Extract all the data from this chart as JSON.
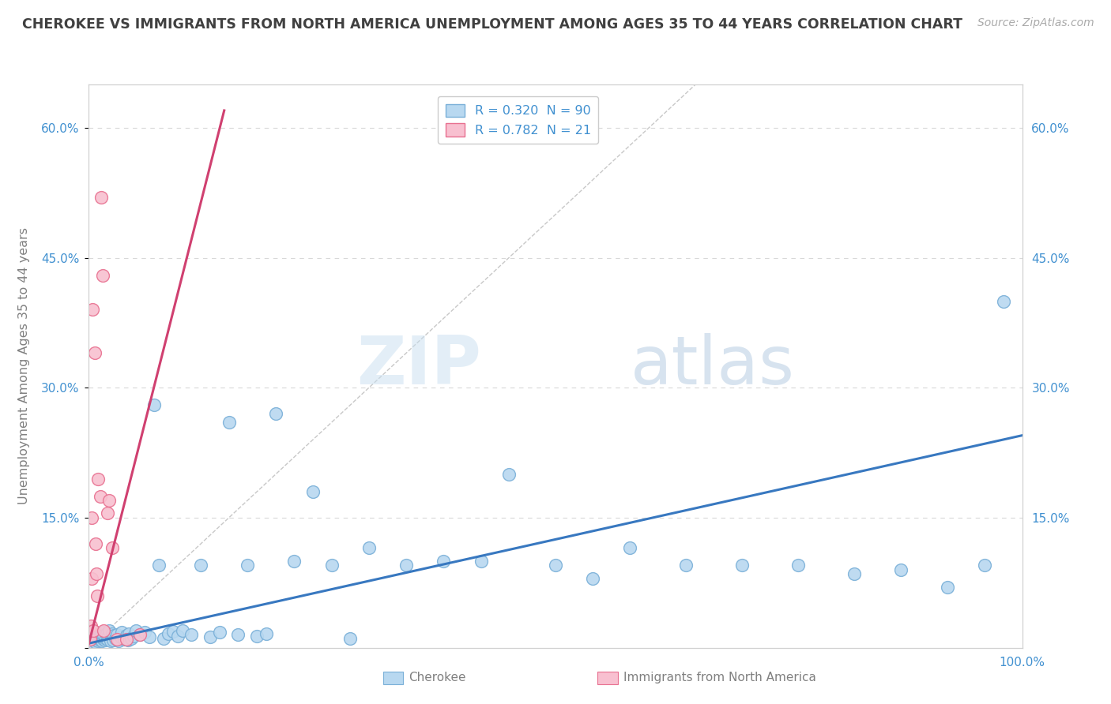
{
  "title": "CHEROKEE VS IMMIGRANTS FROM NORTH AMERICA UNEMPLOYMENT AMONG AGES 35 TO 44 YEARS CORRELATION CHART",
  "source": "Source: ZipAtlas.com",
  "ylabel": "Unemployment Among Ages 35 to 44 years",
  "xlim": [
    0,
    1.0
  ],
  "ylim": [
    0,
    0.65
  ],
  "yticks": [
    0.0,
    0.15,
    0.3,
    0.45,
    0.6
  ],
  "ytick_labels_left": [
    "",
    "15.0%",
    "30.0%",
    "45.0%",
    "60.0%"
  ],
  "ytick_labels_right": [
    "15.0%",
    "30.0%",
    "45.0%",
    "60.0%"
  ],
  "ytick_right_vals": [
    0.15,
    0.3,
    0.45,
    0.6
  ],
  "xtick_labels": [
    "0.0%",
    "100.0%"
  ],
  "xtick_vals": [
    0.0,
    1.0
  ],
  "legend_blue_label": "R = 0.320  N = 90",
  "legend_pink_label": "R = 0.782  N = 21",
  "watermark_zip": "ZIP",
  "watermark_atlas": "atlas",
  "blue_scatter_face": "#b8d8f0",
  "blue_scatter_edge": "#7ab0d8",
  "pink_scatter_face": "#f8c0d0",
  "pink_scatter_edge": "#e87090",
  "blue_line_color": "#3878c0",
  "pink_line_color": "#d04070",
  "dashed_ref_color": "#c8c8c8",
  "grid_color": "#d8d8d8",
  "background_color": "#ffffff",
  "title_color": "#404040",
  "ylabel_color": "#808080",
  "tick_label_color": "#4090d0",
  "source_color": "#aaaaaa",
  "legend_box_edge": "#cccccc",
  "blue_line_x": [
    0.0,
    1.0
  ],
  "blue_line_y": [
    0.005,
    0.245
  ],
  "pink_line_x": [
    0.0,
    0.145
  ],
  "pink_line_y": [
    0.005,
    0.62
  ],
  "ref_line_x": [
    0.0,
    0.65
  ],
  "ref_line_y": [
    0.0,
    0.65
  ],
  "blue_points_x": [
    0.002,
    0.003,
    0.004,
    0.005,
    0.005,
    0.005,
    0.006,
    0.006,
    0.007,
    0.007,
    0.008,
    0.008,
    0.009,
    0.009,
    0.01,
    0.01,
    0.01,
    0.011,
    0.012,
    0.012,
    0.013,
    0.013,
    0.014,
    0.015,
    0.015,
    0.016,
    0.016,
    0.017,
    0.018,
    0.019,
    0.02,
    0.021,
    0.022,
    0.023,
    0.025,
    0.025,
    0.026,
    0.027,
    0.028,
    0.03,
    0.032,
    0.034,
    0.035,
    0.038,
    0.04,
    0.042,
    0.043,
    0.045,
    0.048,
    0.05,
    0.055,
    0.06,
    0.065,
    0.07,
    0.075,
    0.08,
    0.085,
    0.09,
    0.095,
    0.1,
    0.11,
    0.12,
    0.13,
    0.14,
    0.15,
    0.16,
    0.17,
    0.18,
    0.19,
    0.2,
    0.22,
    0.24,
    0.26,
    0.28,
    0.3,
    0.34,
    0.38,
    0.42,
    0.45,
    0.5,
    0.54,
    0.58,
    0.64,
    0.7,
    0.76,
    0.82,
    0.87,
    0.92,
    0.96,
    0.98
  ],
  "blue_points_y": [
    0.01,
    0.015,
    0.008,
    0.012,
    0.02,
    0.005,
    0.018,
    0.008,
    0.012,
    0.006,
    0.015,
    0.009,
    0.01,
    0.014,
    0.008,
    0.011,
    0.016,
    0.012,
    0.009,
    0.013,
    0.01,
    0.015,
    0.008,
    0.012,
    0.018,
    0.01,
    0.014,
    0.009,
    0.011,
    0.016,
    0.01,
    0.013,
    0.02,
    0.008,
    0.012,
    0.016,
    0.009,
    0.014,
    0.011,
    0.015,
    0.008,
    0.012,
    0.018,
    0.01,
    0.014,
    0.009,
    0.016,
    0.011,
    0.013,
    0.02,
    0.015,
    0.018,
    0.012,
    0.28,
    0.095,
    0.011,
    0.016,
    0.019,
    0.013,
    0.02,
    0.015,
    0.095,
    0.012,
    0.018,
    0.26,
    0.015,
    0.095,
    0.013,
    0.016,
    0.27,
    0.1,
    0.18,
    0.095,
    0.011,
    0.115,
    0.095,
    0.1,
    0.1,
    0.2,
    0.095,
    0.08,
    0.115,
    0.095,
    0.095,
    0.095,
    0.085,
    0.09,
    0.07,
    0.095,
    0.4
  ],
  "pink_points_x": [
    0.001,
    0.002,
    0.003,
    0.003,
    0.004,
    0.005,
    0.006,
    0.007,
    0.008,
    0.009,
    0.01,
    0.012,
    0.013,
    0.015,
    0.016,
    0.02,
    0.022,
    0.025,
    0.03,
    0.04,
    0.055
  ],
  "pink_points_y": [
    0.01,
    0.025,
    0.08,
    0.15,
    0.39,
    0.02,
    0.34,
    0.12,
    0.085,
    0.06,
    0.195,
    0.175,
    0.52,
    0.43,
    0.02,
    0.155,
    0.17,
    0.115,
    0.01,
    0.01,
    0.015
  ]
}
